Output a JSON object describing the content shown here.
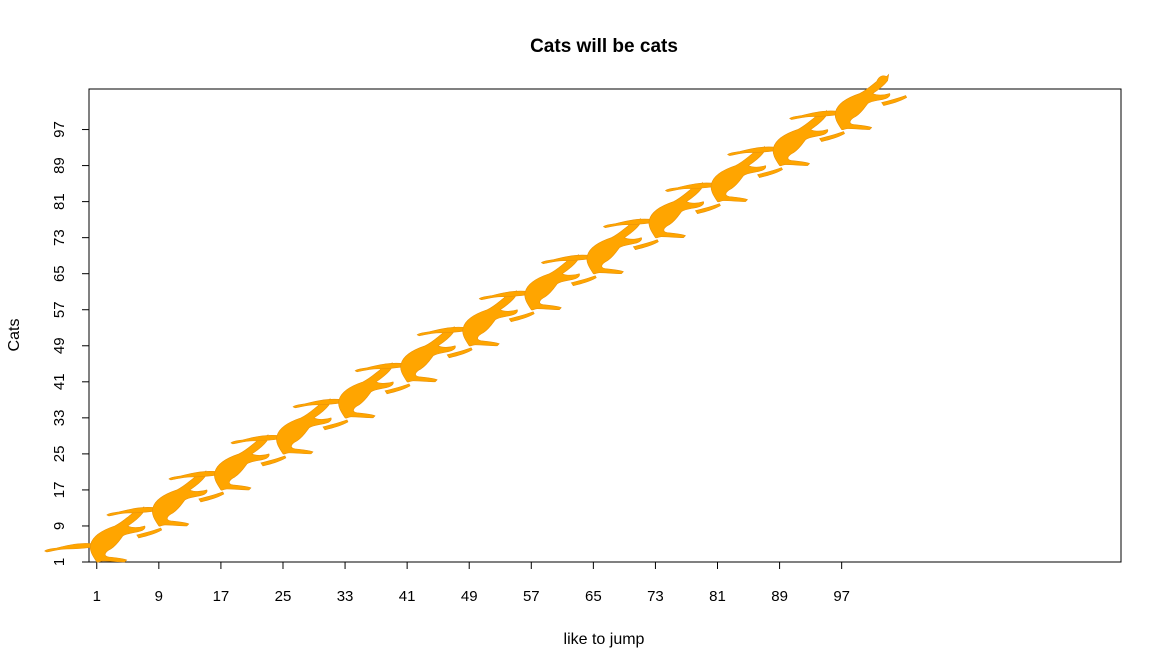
{
  "chart_data": {
    "type": "scatter",
    "title": "Cats will be cats",
    "xlabel": "like to jump",
    "ylabel": "Cats",
    "marker": "cat-silhouette",
    "marker_color": "#FFA500",
    "x": [
      1,
      9,
      17,
      25,
      33,
      41,
      49,
      57,
      65,
      73,
      81,
      89,
      97
    ],
    "y": [
      1,
      9,
      17,
      25,
      33,
      41,
      49,
      57,
      65,
      73,
      81,
      89,
      97
    ],
    "xticks": [
      "1",
      "9",
      "17",
      "25",
      "33",
      "41",
      "49",
      "57",
      "65",
      "73",
      "81",
      "89",
      "97"
    ],
    "yticks": [
      "1",
      "9",
      "17",
      "25",
      "33",
      "41",
      "49",
      "57",
      "65",
      "73",
      "81",
      "89",
      "97"
    ],
    "xlim": [
      0,
      133
    ],
    "ylim": [
      1,
      106
    ],
    "grid": false
  }
}
